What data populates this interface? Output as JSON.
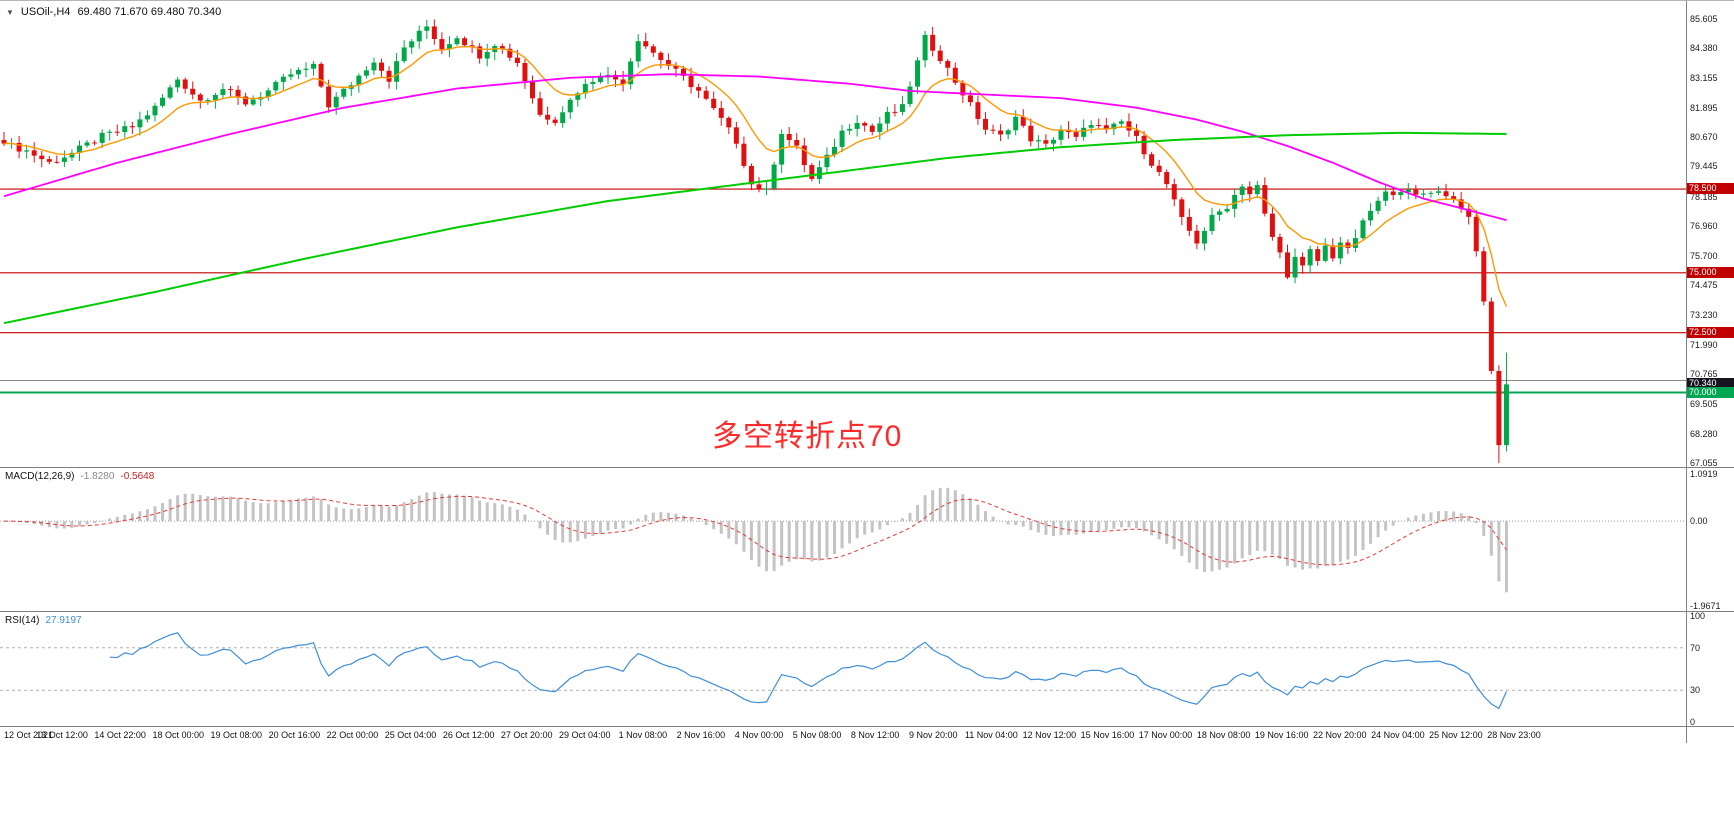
{
  "header": {
    "dropdown_icon": "▼",
    "symbol": "USOil-,H4",
    "ohlc": "69.480 71.670 69.480 70.340"
  },
  "annotation": {
    "text": "多空转折点70",
    "color": "#ff2a2a"
  },
  "main_chart": {
    "price_min": 66.888,
    "price_max": 86.357,
    "y_ticks": [
      "85.605",
      "84.380",
      "83.155",
      "81.895",
      "80.670",
      "79.445",
      "78.185",
      "76.960",
      "75.700",
      "74.475",
      "73.230",
      "71.990",
      "70.765",
      "69.505",
      "68.280",
      "67.055"
    ],
    "levels": {
      "red_lines": [
        78.5,
        75.0,
        72.5
      ],
      "red_line_color": "#c00000",
      "gray_line": 70.5,
      "gray_line_color": "#8a8a8a",
      "green_line": 70.0,
      "green_line_color": "#00a651"
    },
    "price_tags": [
      {
        "value": "78.500",
        "bg": "#c00000",
        "fg": "#ffffff"
      },
      {
        "value": "75.000",
        "bg": "#c00000",
        "fg": "#ffffff"
      },
      {
        "value": "72.500",
        "bg": "#c00000",
        "fg": "#ffffff"
      },
      {
        "value": "70.340",
        "bg": "#15151f",
        "fg": "#ffffff"
      },
      {
        "value": "70.000",
        "bg": "#00a651",
        "fg": "#ffffff"
      }
    ]
  },
  "chart_data": {
    "type": "candlestick",
    "symbol": "USOil-",
    "timeframe": "H4",
    "title": "USOil-,H4 69.480 71.670 69.480 70.340",
    "current_bar": {
      "open": 69.48,
      "high": 71.67,
      "low": 69.48,
      "close": 70.34
    },
    "n_bars": 200,
    "up_color": "#00a847",
    "down_color": "#e01010",
    "close_path_anchors": [
      [
        0,
        80.4
      ],
      [
        3,
        80.1
      ],
      [
        6,
        79.6
      ],
      [
        9,
        80.0
      ],
      [
        13,
        80.7
      ],
      [
        17,
        81.1
      ],
      [
        20,
        81.9
      ],
      [
        23,
        83.1
      ],
      [
        26,
        82.2
      ],
      [
        29,
        82.7
      ],
      [
        32,
        82.1
      ],
      [
        35,
        82.6
      ],
      [
        38,
        83.3
      ],
      [
        41,
        83.6
      ],
      [
        43,
        82.0
      ],
      [
        46,
        82.9
      ],
      [
        49,
        83.9
      ],
      [
        51,
        83.1
      ],
      [
        53,
        84.4
      ],
      [
        56,
        85.3
      ],
      [
        58,
        84.4
      ],
      [
        60,
        84.9
      ],
      [
        63,
        84.1
      ],
      [
        65,
        84.6
      ],
      [
        68,
        83.8
      ],
      [
        71,
        81.6
      ],
      [
        73,
        81.4
      ],
      [
        76,
        82.6
      ],
      [
        79,
        83.3
      ],
      [
        82,
        83.0
      ],
      [
        84,
        84.8
      ],
      [
        86,
        84.2
      ],
      [
        89,
        83.4
      ],
      [
        92,
        82.6
      ],
      [
        95,
        81.4
      ],
      [
        97,
        80.5
      ],
      [
        99,
        78.7
      ],
      [
        101,
        78.4
      ],
      [
        103,
        80.9
      ],
      [
        105,
        80.2
      ],
      [
        107,
        78.9
      ],
      [
        109,
        79.8
      ],
      [
        111,
        80.9
      ],
      [
        113,
        81.4
      ],
      [
        115,
        80.9
      ],
      [
        117,
        81.6
      ],
      [
        119,
        81.9
      ],
      [
        121,
        83.8
      ],
      [
        122,
        84.8
      ],
      [
        124,
        84.0
      ],
      [
        126,
        83.0
      ],
      [
        128,
        82.0
      ],
      [
        130,
        81.0
      ],
      [
        132,
        80.7
      ],
      [
        134,
        81.5
      ],
      [
        136,
        80.6
      ],
      [
        138,
        80.3
      ],
      [
        140,
        81.0
      ],
      [
        142,
        80.6
      ],
      [
        144,
        81.3
      ],
      [
        146,
        80.9
      ],
      [
        148,
        81.3
      ],
      [
        150,
        80.6
      ],
      [
        152,
        79.6
      ],
      [
        154,
        78.7
      ],
      [
        156,
        77.2
      ],
      [
        158,
        76.3
      ],
      [
        160,
        77.3
      ],
      [
        162,
        77.8
      ],
      [
        164,
        78.7
      ],
      [
        165,
        78.3
      ],
      [
        166,
        78.6
      ],
      [
        167,
        77.4
      ],
      [
        168,
        76.5
      ],
      [
        169,
        75.8
      ],
      [
        170,
        74.95
      ],
      [
        171,
        75.6
      ],
      [
        172,
        75.2
      ],
      [
        173,
        75.9
      ],
      [
        174,
        75.5
      ],
      [
        175,
        76.1
      ],
      [
        176,
        75.7
      ],
      [
        177,
        76.3
      ],
      [
        178,
        75.9
      ],
      [
        179,
        76.5
      ],
      [
        181,
        77.6
      ],
      [
        183,
        78.3
      ],
      [
        185,
        78.5
      ],
      [
        187,
        78.2
      ],
      [
        189,
        78.45
      ],
      [
        191,
        78.3
      ],
      [
        193,
        77.8
      ],
      [
        194,
        77.2
      ],
      [
        195,
        75.9
      ],
      [
        196,
        73.8
      ],
      [
        197,
        70.9
      ],
      [
        198,
        67.8
      ],
      [
        199,
        70.34
      ]
    ],
    "crash_low": 67.05,
    "last_bar_high": 71.67,
    "moving_averages": [
      {
        "name": "fast",
        "type": "ema",
        "period": 10,
        "color": "#ff9800",
        "width": 1.4
      },
      {
        "name": "mid",
        "color": "#ff00ff",
        "width": 1.8,
        "anchors": [
          [
            0,
            78.2
          ],
          [
            15,
            79.6
          ],
          [
            30,
            80.8
          ],
          [
            45,
            81.9
          ],
          [
            60,
            82.7
          ],
          [
            75,
            83.15
          ],
          [
            88,
            83.3
          ],
          [
            100,
            83.2
          ],
          [
            112,
            82.9
          ],
          [
            120,
            82.6
          ],
          [
            130,
            82.45
          ],
          [
            140,
            82.3
          ],
          [
            150,
            81.9
          ],
          [
            158,
            81.4
          ],
          [
            164,
            80.9
          ],
          [
            170,
            80.3
          ],
          [
            176,
            79.6
          ],
          [
            182,
            78.8
          ],
          [
            188,
            78.1
          ],
          [
            193,
            77.7
          ],
          [
            199,
            77.2
          ]
        ]
      },
      {
        "name": "slow",
        "color": "#00cc00",
        "width": 2,
        "anchors": [
          [
            0,
            72.9
          ],
          [
            20,
            74.2
          ],
          [
            40,
            75.6
          ],
          [
            60,
            76.9
          ],
          [
            80,
            78.0
          ],
          [
            95,
            78.6
          ],
          [
            110,
            79.2
          ],
          [
            125,
            79.8
          ],
          [
            140,
            80.25
          ],
          [
            155,
            80.55
          ],
          [
            170,
            80.75
          ],
          [
            185,
            80.85
          ],
          [
            199,
            80.8
          ]
        ]
      }
    ],
    "x_labels": [
      "12 Oct 2021",
      "13 Oct 12:00",
      "14 Oct 22:00",
      "18 Oct 00:00",
      "19 Oct 08:00",
      "20 Oct 16:00",
      "22 Oct 00:00",
      "25 Oct 04:00",
      "26 Oct 12:00",
      "27 Oct 20:00",
      "29 Oct 04:00",
      "1 Nov 08:00",
      "2 Nov 16:00",
      "4 Nov 00:00",
      "5 Nov 08:00",
      "8 Nov 12:00",
      "9 Nov 20:00",
      "11 Nov 04:00",
      "12 Nov 12:00",
      "15 Nov 16:00",
      "17 Nov 00:00",
      "18 Nov 08:00",
      "19 Nov 16:00",
      "22 Nov 20:00",
      "24 Nov 04:00",
      "25 Nov 12:00",
      "28 Nov 23:00"
    ],
    "indicators": {
      "macd": {
        "label": "MACD(12,26,9)",
        "value_main": "-1.8280",
        "value_signal": "-0.5648",
        "fast": 12,
        "slow": 26,
        "signal": 9,
        "axis_ticks": [
          "1.0919",
          "0.00",
          "-1.9671"
        ],
        "range": [
          -1.9671,
          1.0919
        ],
        "hist_color": "#c4c4c4",
        "signal_color": "#e53935"
      },
      "rsi": {
        "label": "RSI(14)",
        "value": "27.9197",
        "period": 14,
        "levels": [
          70,
          30
        ],
        "axis_ticks": [
          "100",
          "70",
          "30",
          "0"
        ],
        "range": [
          0,
          100
        ],
        "line_color": "#3e8fd8",
        "level_color": "#b0b0b0"
      }
    }
  }
}
